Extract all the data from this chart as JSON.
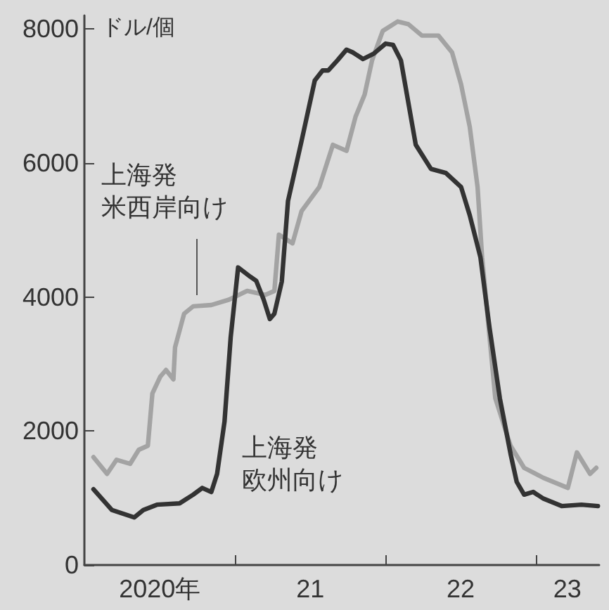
{
  "chart_data": {
    "type": "line",
    "ylabel": "ドル/個",
    "xlim": [
      "2020-01-01",
      "2023-06-03"
    ],
    "xticks": [
      {
        "value": "2020-07-02",
        "label": "2020年"
      },
      {
        "value": "2021-01-01",
        "label": null
      },
      {
        "value": "2021-07-02",
        "label": "21"
      },
      {
        "value": "2022-01-01",
        "label": null
      },
      {
        "value": "2022-07-02",
        "label": "22"
      },
      {
        "value": "2023-01-01",
        "label": null
      },
      {
        "value": "2023-03-18",
        "label": "23"
      }
    ],
    "ylim": [
      0,
      8200
    ],
    "yticks": [
      0,
      2000,
      4000,
      6000,
      8000
    ],
    "grid": false,
    "marker": "none",
    "line_style": "solid",
    "series": [
      {
        "name": "上海発米西岸向け",
        "color": "#a3a3a3",
        "x": [
          "2020-01-23",
          "2020-02-25",
          "2020-03-19",
          "2020-04-21",
          "2020-05-12",
          "2020-06-03",
          "2020-06-14",
          "2020-07-03",
          "2020-07-17",
          "2020-08-04",
          "2020-08-08",
          "2020-08-30",
          "2020-09-21",
          "2020-11-04",
          "2020-12-17",
          "2021-01-30",
          "2021-03-15",
          "2021-04-06",
          "2021-04-17",
          "2021-05-20",
          "2021-06-11",
          "2021-07-24",
          "2021-08-26",
          "2021-09-28",
          "2021-10-20",
          "2021-11-11",
          "2021-11-29",
          "2021-12-25",
          "2022-01-30",
          "2022-02-25",
          "2022-03-30",
          "2022-05-09",
          "2022-06-11",
          "2022-07-03",
          "2022-07-24",
          "2022-08-12",
          "2022-08-23",
          "2022-09-24",
          "2022-10-31",
          "2022-12-03",
          "2023-01-19",
          "2023-03-19",
          "2023-04-10",
          "2023-05-12",
          "2023-05-27"
        ],
        "values": [
          1610,
          1360,
          1570,
          1510,
          1720,
          1780,
          2560,
          2810,
          2910,
          2770,
          3250,
          3750,
          3860,
          3880,
          3960,
          4090,
          4030,
          4090,
          4930,
          4800,
          5280,
          5640,
          6270,
          6180,
          6690,
          7020,
          7530,
          7970,
          8110,
          8070,
          7900,
          7900,
          7650,
          7170,
          6540,
          5640,
          4590,
          2490,
          1780,
          1450,
          1300,
          1150,
          1680,
          1360,
          1450
        ]
      },
      {
        "name": "上海発欧州向け",
        "color": "#333333",
        "x": [
          "2020-01-23",
          "2020-03-08",
          "2020-05-01",
          "2020-05-23",
          "2020-06-25",
          "2020-08-19",
          "2020-09-21",
          "2020-10-13",
          "2020-11-04",
          "2020-11-18",
          "2020-12-06",
          "2020-12-21",
          "2021-01-08",
          "2021-02-07",
          "2021-02-21",
          "2021-03-11",
          "2021-03-26",
          "2021-04-06",
          "2021-04-24",
          "2021-05-09",
          "2021-06-11",
          "2021-07-13",
          "2021-08-01",
          "2021-08-15",
          "2021-09-06",
          "2021-09-28",
          "2021-10-13",
          "2021-11-07",
          "2021-12-03",
          "2022-01-01",
          "2022-01-19",
          "2022-02-07",
          "2022-03-15",
          "2022-04-21",
          "2022-05-27",
          "2022-07-03",
          "2022-07-24",
          "2022-08-19",
          "2022-09-10",
          "2022-10-05",
          "2022-10-31",
          "2022-11-15",
          "2022-12-03",
          "2022-12-25",
          "2023-01-19",
          "2023-03-04",
          "2023-04-21",
          "2023-05-31"
        ],
        "values": [
          1130,
          820,
          710,
          820,
          900,
          920,
          1050,
          1150,
          1090,
          1360,
          2140,
          3400,
          4440,
          4300,
          4240,
          3960,
          3670,
          3750,
          4230,
          5430,
          6330,
          7230,
          7380,
          7380,
          7530,
          7690,
          7650,
          7550,
          7630,
          7780,
          7760,
          7530,
          6270,
          5910,
          5850,
          5640,
          5220,
          4590,
          3540,
          2490,
          1660,
          1240,
          1050,
          1090,
          990,
          880,
          900,
          880
        ]
      }
    ]
  }
}
